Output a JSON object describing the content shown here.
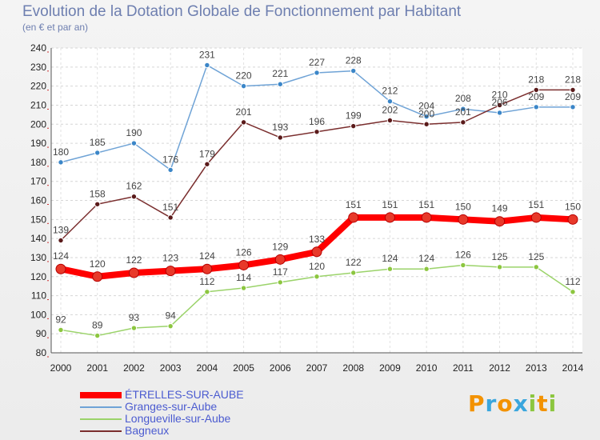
{
  "title": "Evolution de la Dotation Globale de Fonctionnement par Habitant",
  "subtitle": "(en € et par an)",
  "logo": {
    "letters": [
      "P",
      "r",
      "o",
      "x",
      "i",
      "t",
      "i"
    ],
    "colors": [
      "#f39200",
      "#3aa6dd",
      "#f39200",
      "#3aa6dd",
      "#8cc63f",
      "#f39200",
      "#8cc63f"
    ]
  },
  "chart_data": {
    "type": "line",
    "x": [
      2000,
      2001,
      2002,
      2003,
      2004,
      2005,
      2006,
      2007,
      2008,
      2009,
      2010,
      2011,
      2012,
      2013,
      2014
    ],
    "ylim": [
      80,
      240
    ],
    "yticks": [
      80,
      90,
      100,
      110,
      120,
      130,
      140,
      150,
      160,
      170,
      180,
      190,
      200,
      210,
      220,
      230,
      240
    ],
    "grid": "horizontal dashed",
    "legend_position": "bottom-left",
    "series": [
      {
        "name": "ÉTRELLES-SUR-AUBE",
        "color": "#ff0000",
        "marker": "#e8392a",
        "width": 8,
        "values": [
          124,
          120,
          122,
          123,
          124,
          126,
          129,
          133,
          151,
          151,
          151,
          150,
          149,
          151,
          150
        ]
      },
      {
        "name": "Granges-sur-Aube",
        "color": "#6fa3d6",
        "marker": "#3b86c8",
        "width": 1.5,
        "values": [
          180,
          185,
          190,
          176,
          231,
          220,
          221,
          227,
          228,
          212,
          204,
          208,
          206,
          209,
          209
        ]
      },
      {
        "name": "Longueville-sur-Aube",
        "color": "#9bd36a",
        "marker": "#8cc63f",
        "width": 1.5,
        "values": [
          92,
          89,
          93,
          94,
          112,
          114,
          117,
          120,
          122,
          124,
          124,
          126,
          125,
          125,
          112
        ]
      },
      {
        "name": "Bagneux",
        "color": "#7a2e2e",
        "marker": "#5a1a1a",
        "width": 1.5,
        "values": [
          139,
          158,
          162,
          151,
          179,
          201,
          193,
          196,
          199,
          202,
          200,
          201,
          210,
          218,
          218
        ]
      }
    ]
  }
}
